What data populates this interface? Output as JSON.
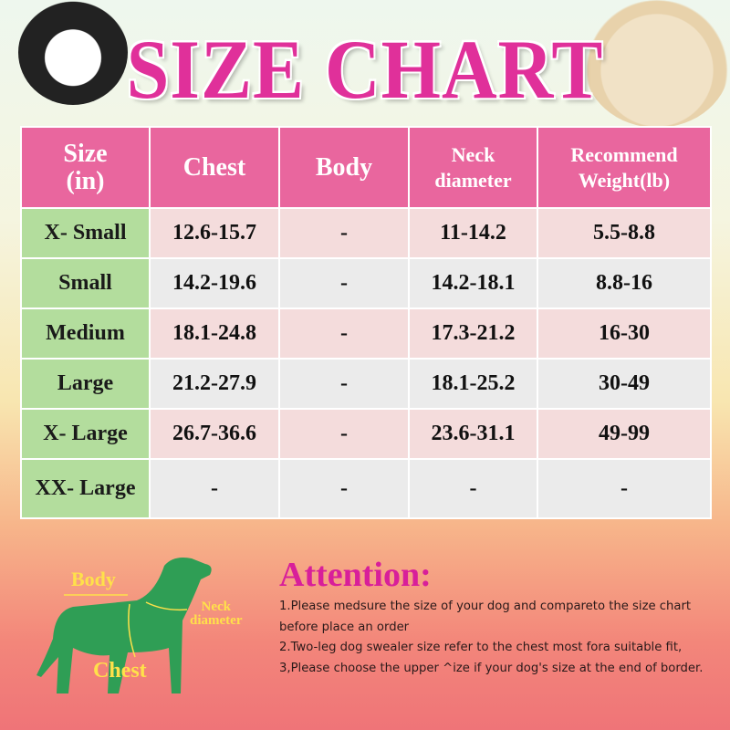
{
  "title": "SIZE CHART",
  "table": {
    "headers": [
      [
        "Size",
        "(in)"
      ],
      [
        "Chest"
      ],
      [
        "Body"
      ],
      [
        "Neck",
        "diameter"
      ],
      [
        "Recommend",
        "Weight(lb)"
      ]
    ],
    "rows": [
      [
        "X- Small",
        "12.6-15.7",
        "-",
        "11-14.2",
        "5.5-8.8"
      ],
      [
        "Small",
        "14.2-19.6",
        "-",
        "14.2-18.1",
        "8.8-16"
      ],
      [
        "Medium",
        "18.1-24.8",
        "-",
        "17.3-21.2",
        "16-30"
      ],
      [
        "Large",
        "21.2-27.9",
        "-",
        "18.1-25.2",
        "30-49"
      ],
      [
        "X- Large",
        "26.7-36.6",
        "-",
        "23.6-31.1",
        "49-99"
      ],
      [
        "XX- Large",
        "-",
        "-",
        "-",
        "-"
      ]
    ]
  },
  "diagram": {
    "body": "Body",
    "neck": [
      "Neck",
      "diameter"
    ],
    "chest": "Chest"
  },
  "attention": {
    "heading": "Attention:",
    "lines": [
      "1.Please medsure the size of your dog and compareto the size chart before place an order",
      "2.Two-leg dog swealer size refer to the chest most fora suitable fit,",
      "3,Please choose the upper ^ize if your dog's size at the end of border."
    ]
  },
  "colors": {
    "title": "#e0309a",
    "header": "#e9669e",
    "size_col": "#b3dd9d",
    "dog": "#2f9e55",
    "label": "#ffe14a"
  }
}
